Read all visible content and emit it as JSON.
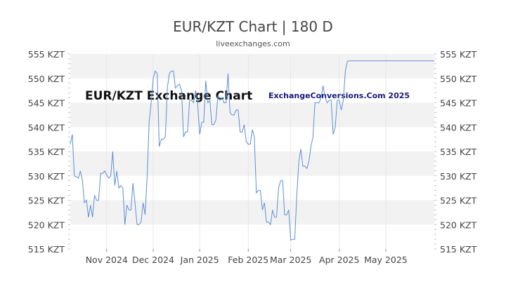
{
  "title": "EUR/KZT Chart | 180 D",
  "subtitle": "liveexchanges.com",
  "watermarks": {
    "left": "EUR/KZT Exchange Chart",
    "right": "ExchangeConversions.Com 2025"
  },
  "colors": {
    "line": "#5b8fd6",
    "band": "#f2f2f2",
    "text": "#444444",
    "axis": "#333333"
  },
  "chart_data": {
    "type": "line",
    "title": "EUR/KZT Chart | 180 D",
    "ylim": [
      515,
      555
    ],
    "xlim": [
      0,
      180
    ],
    "y_ticks": [
      515,
      520,
      525,
      530,
      535,
      540,
      545,
      550,
      555
    ],
    "y_tick_labels": [
      "515 KZT",
      "520 KZT",
      "525 KZT",
      "530 KZT",
      "535 KZT",
      "540 KZT",
      "545 KZT",
      "550 KZT",
      "555 KZT"
    ],
    "x_ticks": [
      {
        "label": "Nov 2024",
        "x": 18
      },
      {
        "label": "Dec 2024",
        "x": 41
      },
      {
        "label": "Jan 2025",
        "x": 64
      },
      {
        "label": "Feb 2025",
        "x": 88
      },
      {
        "label": "Mar 2025",
        "x": 109
      },
      {
        "label": "Apr 2025",
        "x": 133
      },
      {
        "label": "May 2025",
        "x": 156
      }
    ],
    "grid": "horizontal bands",
    "series": [
      {
        "values": [
          [
            0,
            536.5
          ],
          [
            1,
            538.5
          ],
          [
            2,
            530
          ],
          [
            3,
            529.8
          ],
          [
            4,
            529.5
          ],
          [
            5,
            531
          ],
          [
            6,
            529
          ],
          [
            7,
            524.5
          ],
          [
            8,
            525
          ],
          [
            9,
            521.5
          ],
          [
            10,
            524
          ],
          [
            11,
            521.5
          ],
          [
            12,
            526
          ],
          [
            13,
            525
          ],
          [
            14,
            525
          ],
          [
            15,
            530.5
          ],
          [
            16,
            530.5
          ],
          [
            17,
            531
          ],
          [
            18,
            530.2
          ],
          [
            19,
            529.5
          ],
          [
            20,
            530
          ],
          [
            21,
            535
          ],
          [
            22,
            528
          ],
          [
            23,
            531
          ],
          [
            24,
            527.5
          ],
          [
            25,
            528
          ],
          [
            26,
            527.5
          ],
          [
            27,
            520
          ],
          [
            28,
            524
          ],
          [
            29,
            523
          ],
          [
            30,
            523
          ],
          [
            31,
            528.5
          ],
          [
            32,
            524.5
          ],
          [
            33,
            520
          ],
          [
            34,
            520
          ],
          [
            35,
            520.5
          ],
          [
            36,
            524.5
          ],
          [
            37,
            522
          ],
          [
            38,
            530
          ],
          [
            39,
            541
          ],
          [
            40,
            545
          ],
          [
            41,
            550
          ],
          [
            42,
            551.5
          ],
          [
            43,
            551
          ],
          [
            44,
            536
          ],
          [
            45,
            537.5
          ],
          [
            46,
            537.5
          ],
          [
            47,
            538
          ],
          [
            48,
            548
          ],
          [
            49,
            551
          ],
          [
            50,
            551.5
          ],
          [
            51,
            551.5
          ],
          [
            52,
            548
          ],
          [
            53,
            548.5
          ],
          [
            54,
            548.8
          ],
          [
            55,
            547.5
          ],
          [
            56,
            538
          ],
          [
            57,
            539
          ],
          [
            58,
            539
          ],
          [
            59,
            545.5
          ],
          [
            60,
            545.5
          ],
          [
            61,
            545
          ],
          [
            62,
            547.5
          ],
          [
            63,
            544.5
          ],
          [
            64,
            538.5
          ],
          [
            65,
            541
          ],
          [
            66,
            541
          ],
          [
            67,
            549.5
          ],
          [
            68,
            545
          ],
          [
            69,
            545.5
          ],
          [
            70,
            540.5
          ],
          [
            71,
            540.5
          ],
          [
            72,
            541.5
          ],
          [
            73,
            546.5
          ],
          [
            74,
            545.5
          ],
          [
            75,
            546
          ],
          [
            76,
            545
          ],
          [
            77,
            545
          ],
          [
            78,
            551
          ],
          [
            79,
            543
          ],
          [
            80,
            542.5
          ],
          [
            81,
            542.5
          ],
          [
            82,
            543.5
          ],
          [
            83,
            543.5
          ],
          [
            84,
            539
          ],
          [
            85,
            539
          ],
          [
            86,
            540.5
          ],
          [
            87,
            537
          ],
          [
            88,
            536.5
          ],
          [
            89,
            536.5
          ],
          [
            90,
            539.5
          ],
          [
            91,
            538
          ],
          [
            92,
            526.5
          ],
          [
            93,
            527
          ],
          [
            94,
            527
          ],
          [
            95,
            523
          ],
          [
            96,
            524.5
          ],
          [
            97,
            520.5
          ],
          [
            98,
            520.5
          ],
          [
            99,
            520
          ],
          [
            100,
            523
          ],
          [
            101,
            521.5
          ],
          [
            102,
            521.5
          ],
          [
            103,
            527.5
          ],
          [
            104,
            529
          ],
          [
            105,
            529
          ],
          [
            106,
            522
          ],
          [
            107,
            522
          ],
          [
            108,
            523
          ],
          [
            109,
            516.8
          ],
          [
            110,
            517
          ],
          [
            111,
            517
          ],
          [
            112,
            526
          ],
          [
            113,
            533
          ],
          [
            114,
            535.5
          ],
          [
            115,
            532
          ],
          [
            116,
            532
          ],
          [
            117,
            531.5
          ],
          [
            118,
            533
          ],
          [
            119,
            536
          ],
          [
            120,
            538
          ],
          [
            121,
            545
          ],
          [
            122,
            545
          ],
          [
            123,
            545
          ],
          [
            124,
            546
          ],
          [
            125,
            548.5
          ],
          [
            126,
            546
          ],
          [
            127,
            545
          ],
          [
            128,
            545.5
          ],
          [
            129,
            545.5
          ],
          [
            130,
            538.5
          ],
          [
            131,
            540
          ],
          [
            132,
            545.5
          ],
          [
            133,
            545.5
          ],
          [
            134,
            543.5
          ],
          [
            135,
            545.5
          ],
          [
            136,
            551.5
          ],
          [
            137,
            553.5
          ],
          [
            138,
            553.6
          ],
          [
            180,
            553.6
          ]
        ]
      }
    ]
  }
}
